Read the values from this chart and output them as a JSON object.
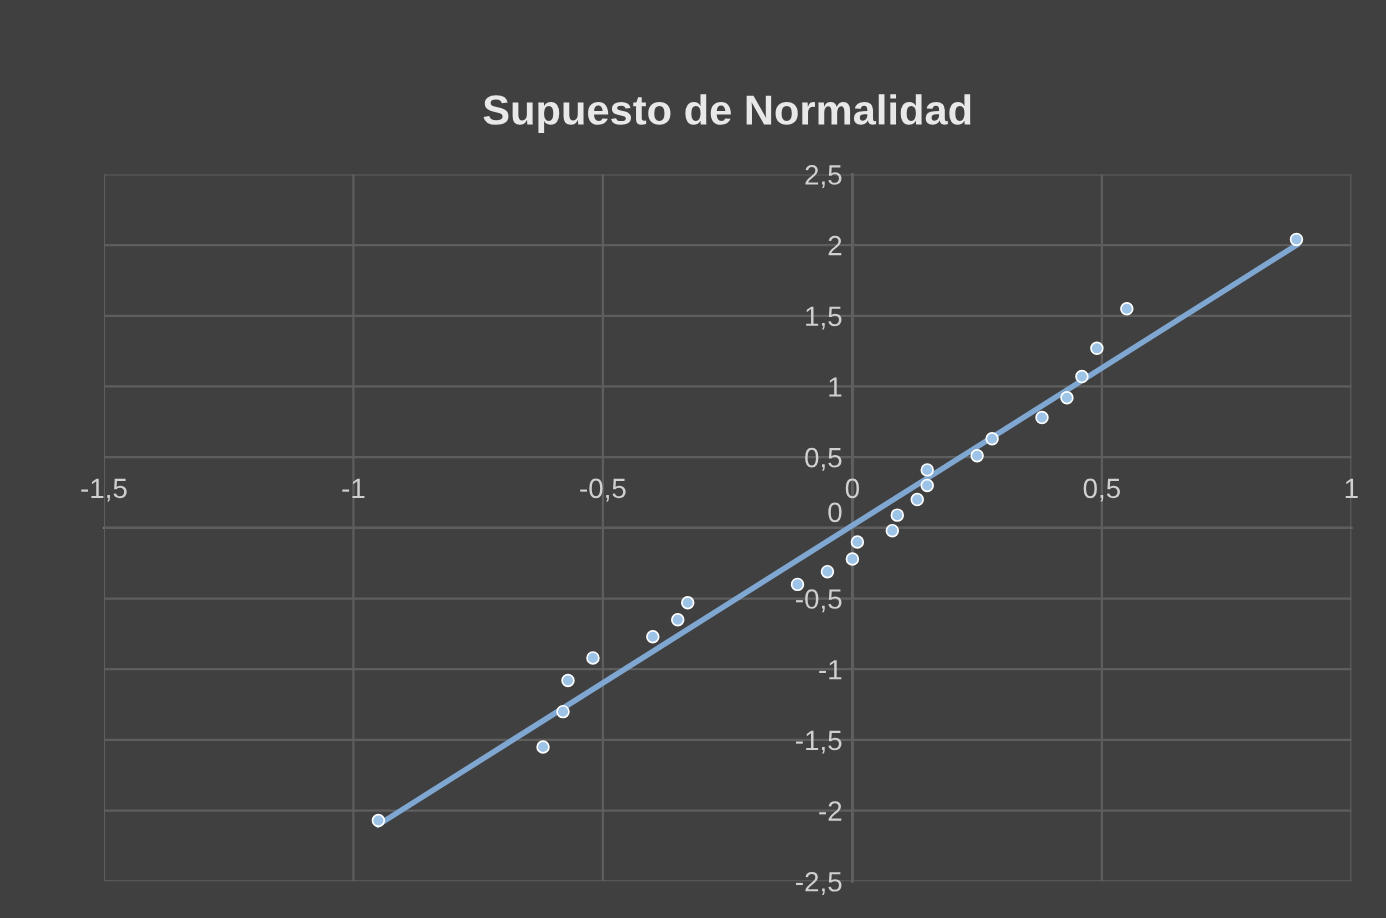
{
  "chart_data": {
    "type": "scatter",
    "title": "Supuesto de Normalidad",
    "series": [
      {
        "type": "scatter",
        "color": "#9dc3e6",
        "x": [
          -0.95,
          -0.62,
          -0.58,
          -0.57,
          -0.52,
          -0.4,
          -0.35,
          -0.33,
          -0.11,
          -0.05,
          0.0,
          0.01,
          0.08,
          0.09,
          0.13,
          0.15,
          0.15,
          0.25,
          0.28,
          0.38,
          0.43,
          0.46,
          0.49,
          0.55,
          0.89
        ],
        "values": [
          -2.07,
          -1.55,
          -1.3,
          -1.08,
          -0.92,
          -0.77,
          -0.65,
          -0.53,
          -0.4,
          -0.31,
          -0.22,
          -0.1,
          -0.02,
          0.09,
          0.2,
          0.3,
          0.41,
          0.51,
          0.63,
          0.78,
          0.92,
          1.07,
          1.27,
          1.55,
          2.04
        ]
      },
      {
        "type": "line",
        "marker": "none",
        "color": "#7fa7d1",
        "x": [
          -0.95,
          0.89
        ],
        "values": [
          -2.1,
          2.0
        ]
      }
    ],
    "xlim": [
      -1.5,
      1
    ],
    "ylim": [
      -2.5,
      2.5
    ],
    "xticks": [
      {
        "value": -1.5,
        "label": "-1,5"
      },
      -1,
      {
        "value": -0.5,
        "label": "-0,5"
      },
      0,
      {
        "value": 0.5,
        "label": "0,5"
      },
      1
    ],
    "yticks": [
      {
        "value": -2.5,
        "label": "-2,5"
      },
      -2,
      {
        "value": -1.5,
        "label": "-1,5"
      },
      -1,
      {
        "value": -0.5,
        "label": "-0,5"
      },
      0,
      {
        "value": 0.5,
        "label": "0,5"
      },
      1,
      {
        "value": 1.5,
        "label": "1,5"
      },
      2,
      {
        "value": 2.5,
        "label": "2,5"
      }
    ],
    "grid": true,
    "marker": "circle",
    "legend": false
  }
}
